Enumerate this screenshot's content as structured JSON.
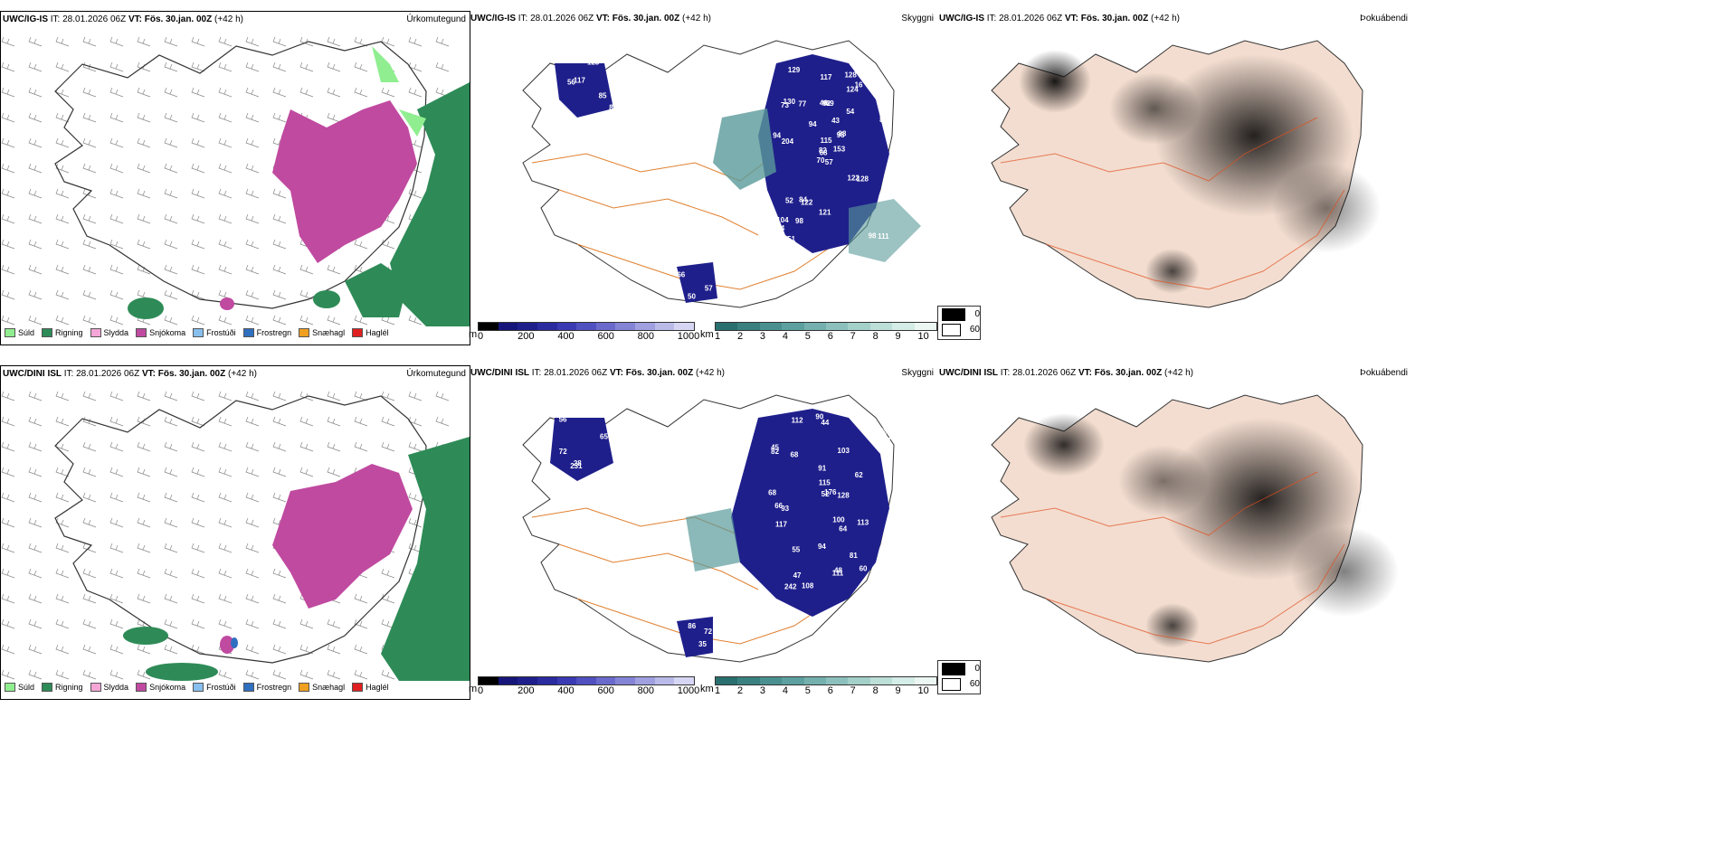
{
  "rows": [
    {
      "model": "UWC/IG-IS",
      "it_label": "IT:",
      "it_value": "28.01.2026 06Z",
      "vt_label": "VT:",
      "vt_value": "Fös. 30.jan. 00Z",
      "lead": "(+42 h)",
      "panels": {
        "precip_title": "Úrkomutegund",
        "vis_title": "Skyggni",
        "cloud_title": "Þokuábendi"
      },
      "vis_labels": [
        "57",
        "73",
        "68",
        "104",
        "96",
        "122",
        "128",
        "69",
        "124",
        "153",
        "129",
        "111",
        "204",
        "247",
        "70",
        "54",
        "51",
        "46",
        "43",
        "52",
        "94",
        "84",
        "98",
        "92",
        "88",
        "128",
        "130",
        "117",
        "94",
        "122",
        "85",
        "82",
        "121",
        "115",
        "77",
        "16",
        "84",
        "98",
        "86",
        "85",
        "123",
        "117",
        "56",
        "57",
        "50",
        "66"
      ]
    },
    {
      "model": "UWC/DINI ISL",
      "it_label": "IT:",
      "it_value": "28.01.2026 06Z",
      "vt_label": "VT:",
      "vt_value": "Fös. 30.jan. 00Z",
      "lead": "(+42 h)",
      "panels": {
        "precip_title": "Úrkomutegund",
        "vis_title": "Skyggni",
        "cloud_title": "Þokuábendi"
      },
      "vis_labels": [
        "68",
        "44",
        "62",
        "88",
        "45",
        "72",
        "93",
        "103",
        "91",
        "116",
        "176",
        "113",
        "90",
        "82",
        "68",
        "55",
        "48",
        "66",
        "100",
        "94",
        "81",
        "60",
        "127",
        "115",
        "47",
        "52",
        "64",
        "112",
        "108",
        "111",
        "117",
        "126",
        "128",
        "242",
        "231",
        "72",
        "65",
        "56",
        "28",
        "86",
        "35",
        "72"
      ]
    }
  ],
  "precip_legend": [
    {
      "label": "Súld",
      "color": "#90ee90"
    },
    {
      "label": "Rigning",
      "color": "#2e8b57"
    },
    {
      "label": "Slydda",
      "color": "#f4a6d6"
    },
    {
      "label": "Snjókoma",
      "color": "#c04aa0"
    },
    {
      "label": "Frostúði",
      "color": "#87bfee"
    },
    {
      "label": "Frostregn",
      "color": "#2f6fc0"
    },
    {
      "label": "Snæhagl",
      "color": "#f0a020"
    },
    {
      "label": "Haglél",
      "color": "#e02020"
    }
  ],
  "vis_bar_m": {
    "unit": "m",
    "ticks": [
      "0",
      "200",
      "400",
      "600",
      "800",
      "1000"
    ],
    "colors": [
      "#000000",
      "#16167a",
      "#1f1f8c",
      "#2b2ba0",
      "#3a3ab2",
      "#5050c0",
      "#6a6acc",
      "#8484d6",
      "#a0a0e0",
      "#bbbbea",
      "#d6d6f4"
    ]
  },
  "vis_bar_km": {
    "unit": "km",
    "ticks": [
      "1",
      "2",
      "3",
      "4",
      "5",
      "6",
      "7",
      "8",
      "9",
      "10"
    ],
    "colors": [
      "#2a6f6f",
      "#3a8080",
      "#4b9090",
      "#5ca0a0",
      "#74b0ae",
      "#8cc0bc",
      "#a4d0ca",
      "#bcdfd8",
      "#d4ede6",
      "#ecf6f2"
    ]
  },
  "fog_legend": [
    {
      "label": "0",
      "color": "#000000"
    },
    {
      "label": "60",
      "color": "#ffffff"
    }
  ],
  "colors": {
    "rain": "#2e8b57",
    "snow": "#c04aa0",
    "drizzle": "#90ee90",
    "road": "#e08030",
    "fog_land": "#f3ddd0",
    "vis_low": "#1f1f8c",
    "vis_mid": "#5a9a9a"
  }
}
